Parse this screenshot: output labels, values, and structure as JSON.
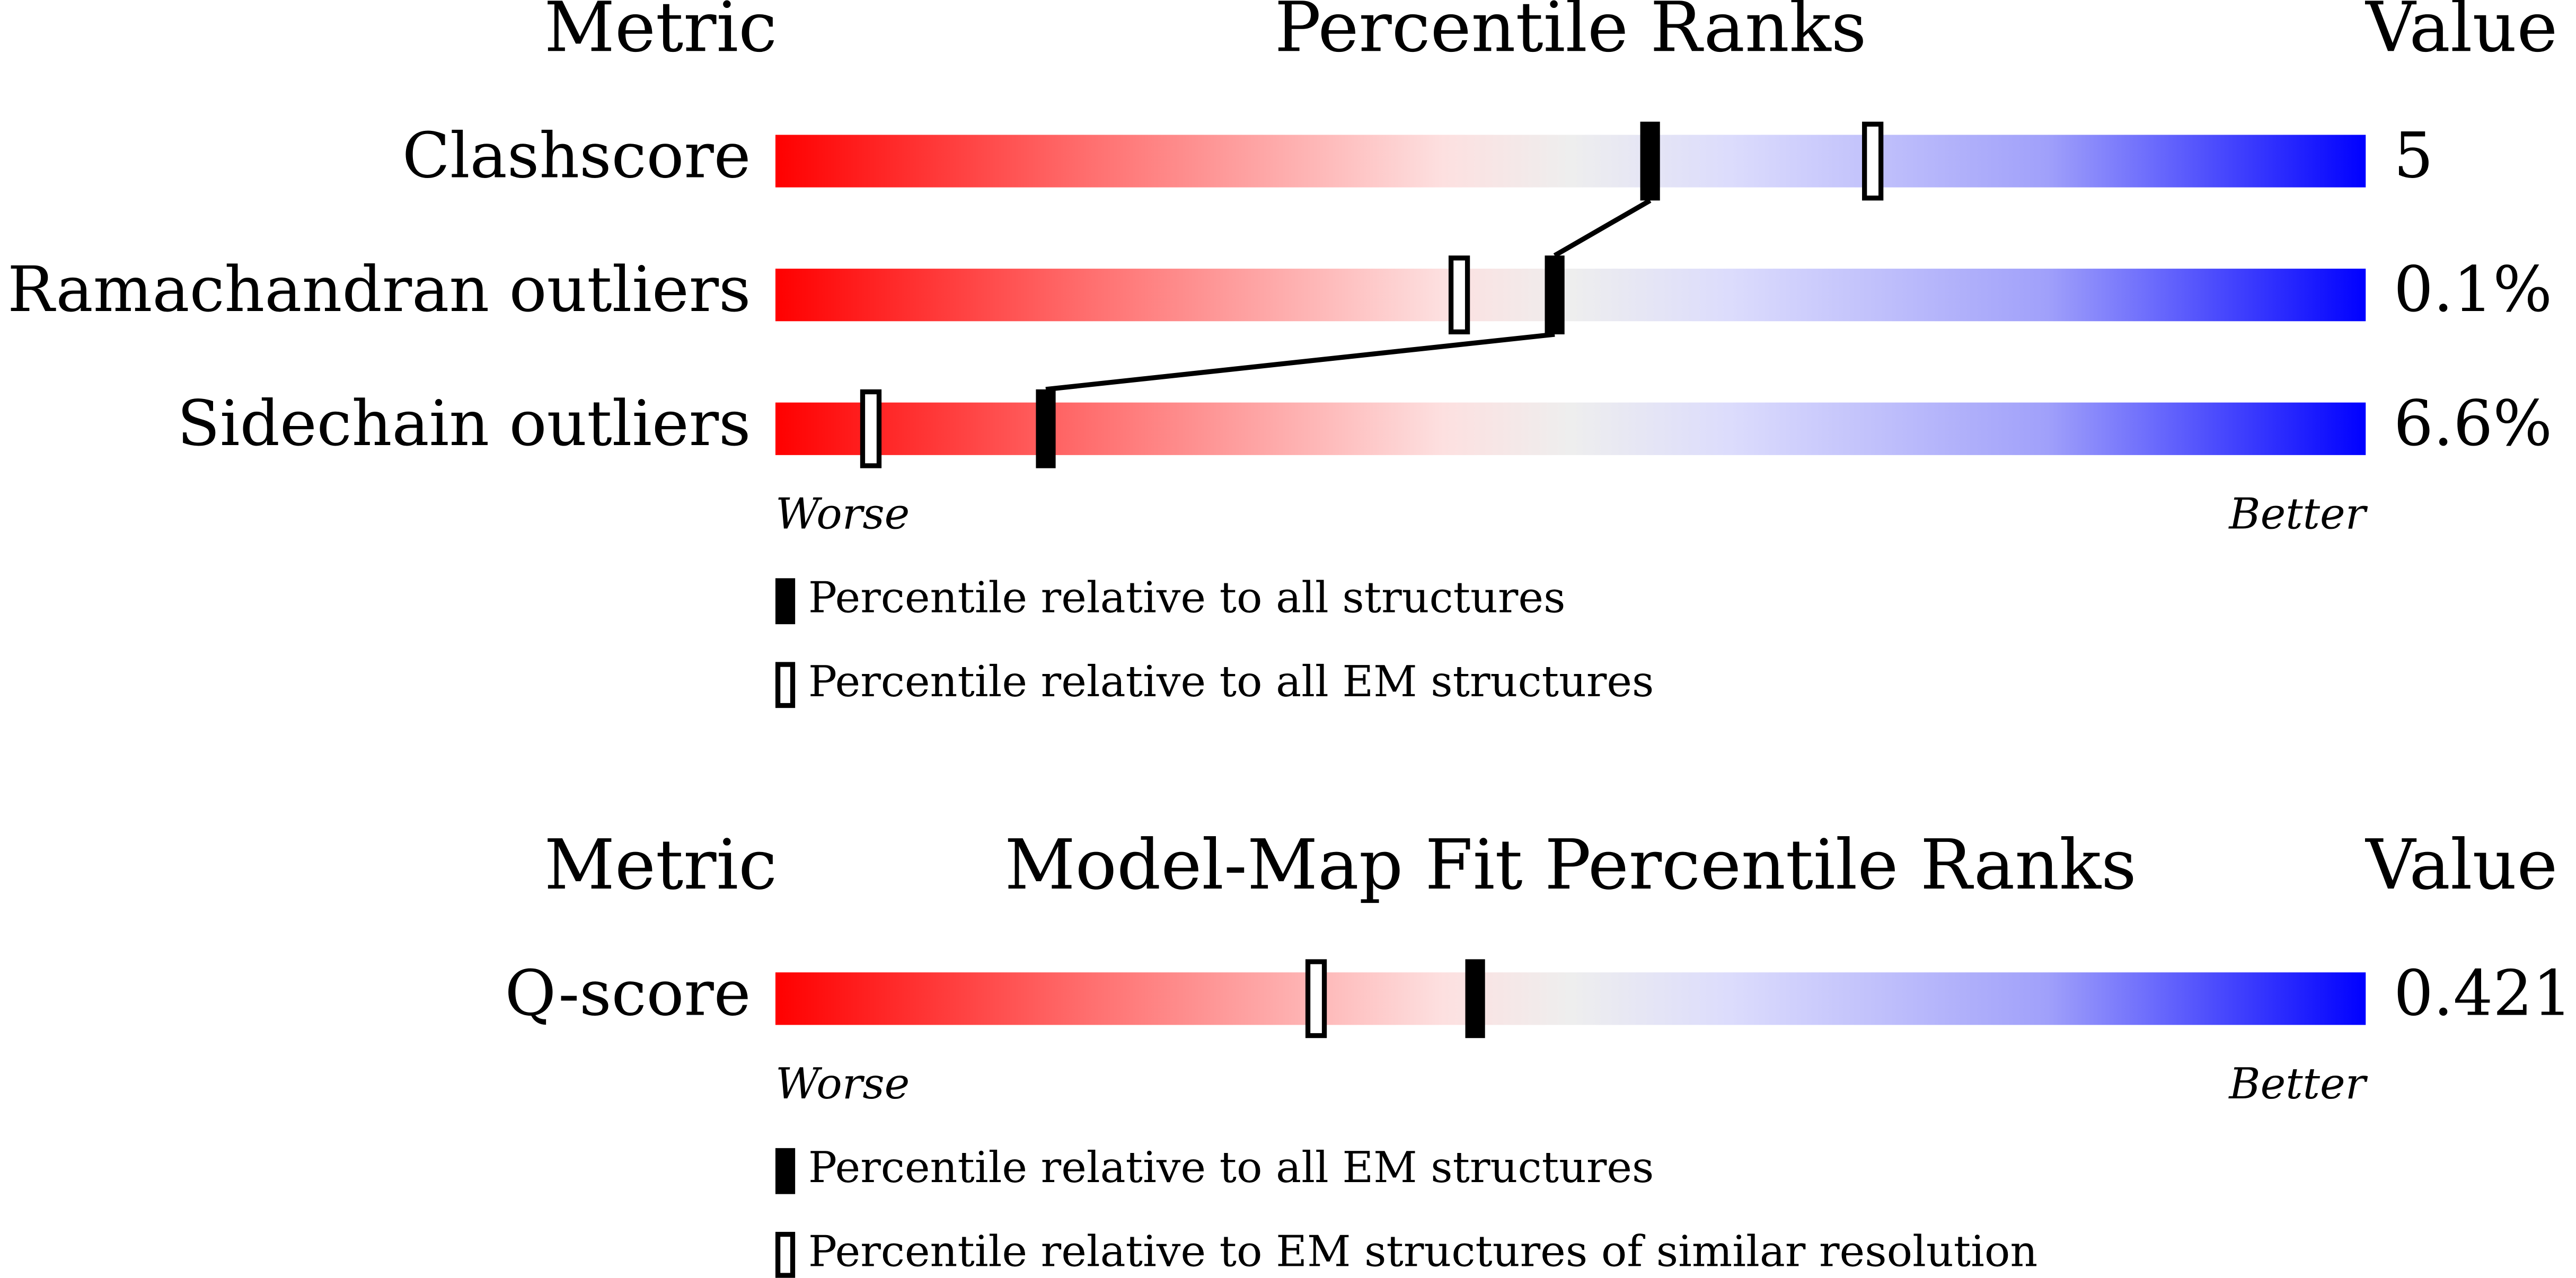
{
  "chart_data": [
    {
      "type": "slider",
      "metric_header": "Metric",
      "title": "Percentile Ranks",
      "value_header": "Value",
      "categories": [
        "Clashscore",
        "Ramachandran outliers",
        "Sidechain outliers"
      ],
      "metric_values": [
        "5",
        "0.1%",
        "6.6%"
      ],
      "xlim": [
        0,
        100
      ],
      "low_label": "Worse",
      "high_label": "Better",
      "series": [
        {
          "name": "Percentile relative to all structures",
          "marker": "filled",
          "connect": true,
          "color": "#000000",
          "values": [
            55,
            49,
            17
          ]
        },
        {
          "name": "Percentile relative to all EM structures",
          "marker": "open",
          "connect": false,
          "color": "#000000",
          "values": [
            69,
            43,
            6
          ]
        }
      ]
    },
    {
      "type": "slider",
      "metric_header": "Metric",
      "title": "Model-Map Fit Percentile Ranks",
      "value_header": "Value",
      "categories": [
        "Q-score"
      ],
      "metric_values": [
        "0.421"
      ],
      "xlim": [
        0,
        100
      ],
      "low_label": "Worse",
      "high_label": "Better",
      "series": [
        {
          "name": "Percentile relative to all EM structures",
          "marker": "filled",
          "connect": true,
          "color": "#000000",
          "values": [
            44
          ]
        },
        {
          "name": "Percentile relative to EM structures of similar resolution",
          "marker": "open",
          "connect": false,
          "color": "#000000",
          "values": [
            34
          ]
        }
      ]
    }
  ]
}
